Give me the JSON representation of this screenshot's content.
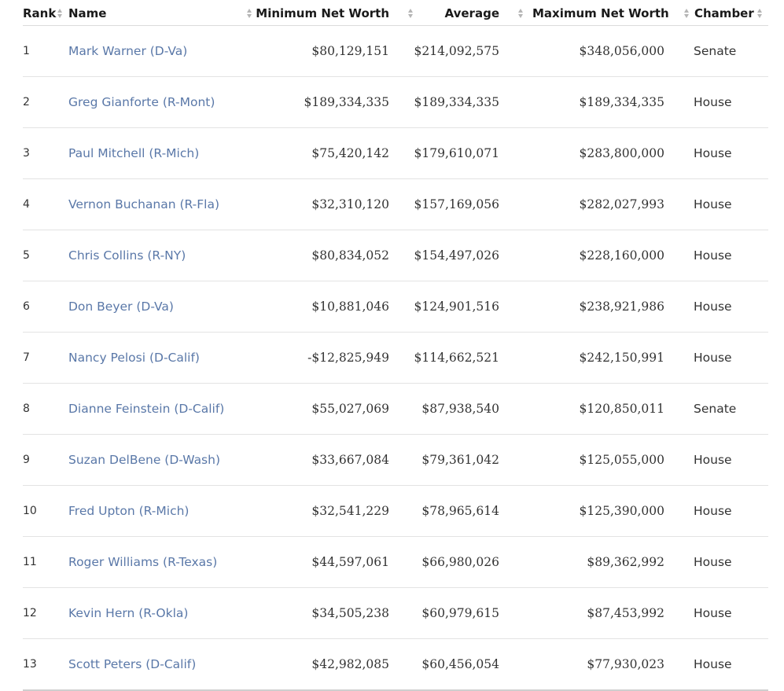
{
  "headers": {
    "rank": "Rank",
    "name": "Name",
    "min": "Minimum Net Worth",
    "avg": "Average",
    "max": "Maximum Net Worth",
    "chamber": "Chamber"
  },
  "rows": [
    {
      "rank": "1",
      "name": "Mark Warner (D-Va)",
      "min": "$80,129,151",
      "avg": "$214,092,575",
      "max": "$348,056,000",
      "chamber": "Senate"
    },
    {
      "rank": "2",
      "name": "Greg Gianforte (R-Mont)",
      "min": "$189,334,335",
      "avg": "$189,334,335",
      "max": "$189,334,335",
      "chamber": "House"
    },
    {
      "rank": "3",
      "name": "Paul Mitchell (R-Mich)",
      "min": "$75,420,142",
      "avg": "$179,610,071",
      "max": "$283,800,000",
      "chamber": "House"
    },
    {
      "rank": "4",
      "name": "Vernon Buchanan (R-Fla)",
      "min": "$32,310,120",
      "avg": "$157,169,056",
      "max": "$282,027,993",
      "chamber": "House"
    },
    {
      "rank": "5",
      "name": "Chris Collins (R-NY)",
      "min": "$80,834,052",
      "avg": "$154,497,026",
      "max": "$228,160,000",
      "chamber": "House"
    },
    {
      "rank": "6",
      "name": "Don Beyer (D-Va)",
      "min": "$10,881,046",
      "avg": "$124,901,516",
      "max": "$238,921,986",
      "chamber": "House"
    },
    {
      "rank": "7",
      "name": "Nancy Pelosi (D-Calif)",
      "min": "-$12,825,949",
      "avg": "$114,662,521",
      "max": "$242,150,991",
      "chamber": "House"
    },
    {
      "rank": "8",
      "name": "Dianne Feinstein (D-Calif)",
      "min": "$55,027,069",
      "avg": "$87,938,540",
      "max": "$120,850,011",
      "chamber": "Senate"
    },
    {
      "rank": "9",
      "name": "Suzan DelBene (D-Wash)",
      "min": "$33,667,084",
      "avg": "$79,361,042",
      "max": "$125,055,000",
      "chamber": "House"
    },
    {
      "rank": "10",
      "name": "Fred Upton (R-Mich)",
      "min": "$32,541,229",
      "avg": "$78,965,614",
      "max": "$125,390,000",
      "chamber": "House"
    },
    {
      "rank": "11",
      "name": "Roger Williams (R-Texas)",
      "min": "$44,597,061",
      "avg": "$66,980,026",
      "max": "$89,362,992",
      "chamber": "House"
    },
    {
      "rank": "12",
      "name": "Kevin Hern (R-Okla)",
      "min": "$34,505,238",
      "avg": "$60,979,615",
      "max": "$87,453,992",
      "chamber": "House"
    },
    {
      "rank": "13",
      "name": "Scott Peters (D-Calif)",
      "min": "$42,982,085",
      "avg": "$60,456,054",
      "max": "$77,930,023",
      "chamber": "House"
    }
  ]
}
